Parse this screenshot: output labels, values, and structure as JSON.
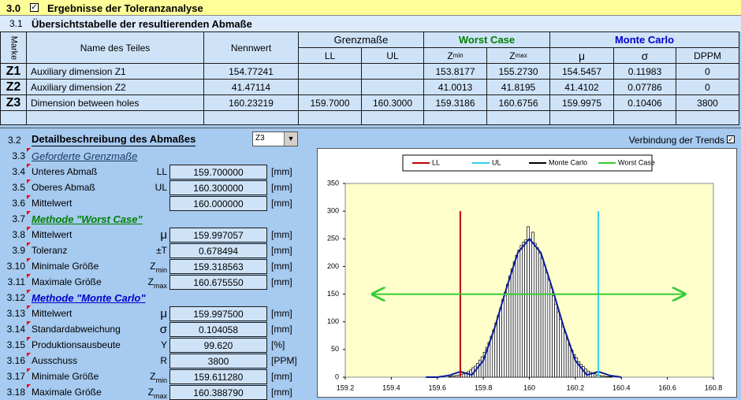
{
  "header": {
    "number": "3.0",
    "title": "Ergebnisse der Toleranzanalyse"
  },
  "overview": {
    "number": "3.1",
    "title": "Übersichtstabelle der resultierenden Abmaße",
    "columns": {
      "mark": "Marke",
      "name": "Name des Teiles",
      "nominal": "Nennwert",
      "ll": "LL",
      "ul": "UL",
      "zmin": {
        "symbol": "Z",
        "sub": "min"
      },
      "zmax": {
        "symbol": "Z",
        "sub": "max"
      },
      "mu": "μ",
      "sigma": "σ",
      "dppm": "DPPM"
    },
    "groups": {
      "limits": "Grenzmaße",
      "worst_case": "Worst Case",
      "monte_carlo": "Monte Carlo"
    },
    "rows": [
      {
        "mark": "Z1",
        "name": "Auxiliary dimension Z1",
        "nominal": "154.77241",
        "zmin": "153.8177",
        "zmax": "155.2730",
        "mu": "154.5457",
        "sigma": "0.11983",
        "dppm": "0"
      },
      {
        "mark": "Z2",
        "name": "Auxiliary dimension Z2",
        "nominal": "41.47114",
        "zmin": "41.0013",
        "zmax": "41.8195",
        "mu": "41.4102",
        "sigma": "0.07786",
        "dppm": "0"
      },
      {
        "mark": "Z3",
        "name": "Dimension between holes",
        "nominal": "160.23219",
        "ll": "159.7000",
        "ul": "160.3000",
        "zmin": "159.3186",
        "zmax": "160.6756",
        "mu": "159.9975",
        "sigma": "0.10406",
        "dppm": "3800"
      }
    ]
  },
  "details": {
    "number": "3.2",
    "title": "Detailbeschreibung des Abmaßes",
    "selected": "Z3",
    "trend_link": "Verbindung der Trends",
    "lines": [
      {
        "number": "3.3",
        "heading": "Geforderte Grenzmaße"
      },
      {
        "number": "3.4",
        "label": "Unteres Abmaß",
        "symbol": "LL",
        "value": "159.700000",
        "unit": "[mm]"
      },
      {
        "number": "3.5",
        "label": "Oberes Abmaß",
        "symbol": "UL",
        "value": "160.300000",
        "unit": "[mm]"
      },
      {
        "number": "3.6",
        "label": "Mittelwert",
        "value": "160.000000",
        "unit": "[mm]"
      },
      {
        "number": "3.7",
        "heading": "Methode \"Worst Case\"",
        "color": "#008000"
      },
      {
        "number": "3.8",
        "label": "Mittelwert",
        "symbol": "μ",
        "value": "159.997057",
        "unit": "[mm]"
      },
      {
        "number": "3.9",
        "label": "Toleranz",
        "symbol": "±T",
        "value": "0.678494",
        "unit": "[mm]"
      },
      {
        "number": "3.10",
        "label": "Minimale Größe",
        "symbol": "Z",
        "symbol_sub": "min",
        "value": "159.318563",
        "unit": "[mm]"
      },
      {
        "number": "3.11",
        "label": "Maximale Größe",
        "symbol": "Z",
        "symbol_sub": "max",
        "value": "160.675550",
        "unit": "[mm]"
      },
      {
        "number": "3.12",
        "heading": "Methode \"Monte Carlo\"",
        "color": "#0000cc"
      },
      {
        "number": "3.13",
        "label": "Mittelwert",
        "symbol": "μ",
        "value": "159.997500",
        "unit": "[mm]"
      },
      {
        "number": "3.14",
        "label": "Standardabweichung",
        "symbol": "σ",
        "value": "0.104058",
        "unit": "[mm]"
      },
      {
        "number": "3.15",
        "label": "Produktionsausbeute",
        "symbol": "Y",
        "value": "99.620",
        "unit": "[%]"
      },
      {
        "number": "3.16",
        "label": "Ausschuss",
        "symbol": "R",
        "value": "3800",
        "unit": "[PPM]"
      },
      {
        "number": "3.17",
        "label": "Minimale Größe",
        "symbol": "Z",
        "symbol_sub": "min",
        "value": "159.611280",
        "unit": "[mm]"
      },
      {
        "number": "3.18",
        "label": "Maximale Größe",
        "symbol": "Z",
        "symbol_sub": "max",
        "value": "160.388790",
        "unit": "[mm]"
      }
    ]
  },
  "chart_data": {
    "type": "histogram",
    "xlim": [
      159.2,
      160.8
    ],
    "xticks": [
      159.2,
      159.4,
      159.6,
      159.8,
      160,
      160.2,
      160.4,
      160.6,
      160.8
    ],
    "ylim": [
      0,
      350
    ],
    "yticks": [
      0,
      50,
      100,
      150,
      200,
      250,
      300,
      350
    ],
    "grid": false,
    "background": "#ffffcc",
    "series": [
      {
        "name": "LL",
        "color": "#c00000",
        "x": [
          159.7,
          159.7
        ],
        "values": [
          0,
          300
        ]
      },
      {
        "name": "UL",
        "color": "#33ccee",
        "x": [
          160.3,
          160.3
        ],
        "values": [
          0,
          300
        ]
      },
      {
        "name": "Monte Carlo",
        "kind": "histogram",
        "color": "#000000",
        "bins": [
          159.65,
          159.66,
          159.67,
          159.68,
          159.69,
          159.7,
          159.71,
          159.72,
          159.73,
          159.74,
          159.75,
          159.76,
          159.77,
          159.78,
          159.79,
          159.8,
          159.81,
          159.82,
          159.83,
          159.84,
          159.85,
          159.86,
          159.87,
          159.88,
          159.89,
          159.9,
          159.91,
          159.92,
          159.93,
          159.94,
          159.95,
          159.96,
          159.97,
          159.98,
          159.99,
          160,
          160.01,
          160.02,
          160.03,
          160.04,
          160.05,
          160.06,
          160.07,
          160.08,
          160.09,
          160.1,
          160.11,
          160.12,
          160.13,
          160.14,
          160.15,
          160.16,
          160.17,
          160.18,
          160.19,
          160.2,
          160.21,
          160.22,
          160.23,
          160.24,
          160.25,
          160.26,
          160.27,
          160.28,
          160.29,
          160.3,
          160.31,
          160.32,
          160.33,
          160.34,
          160.35,
          160.36,
          160.37,
          160.38
        ],
        "values": [
          1,
          2,
          2,
          3,
          4,
          5,
          6,
          8,
          10,
          13,
          17,
          20,
          25,
          31,
          37,
          45,
          54,
          63,
          74,
          85,
          98,
          111,
          124,
          140,
          153,
          168,
          183,
          196,
          209,
          220,
          230,
          238,
          244,
          248,
          272,
          249,
          262,
          242,
          234,
          224,
          215,
          202,
          189,
          176,
          161,
          147,
          132,
          118,
          105,
          91,
          80,
          68,
          58,
          49,
          41,
          35,
          28,
          23,
          19,
          15,
          11,
          9,
          7,
          6,
          4,
          3,
          2,
          2,
          1,
          1,
          1,
          0,
          0
        ]
      },
      {
        "name": "Worst Case",
        "color": "#33cc33",
        "x": [
          159.318563,
          160.67555
        ],
        "values": [
          150,
          150
        ],
        "arrows": true
      }
    ],
    "fit": {
      "color": "#0a1a9a",
      "x": [
        159.55,
        159.6,
        159.65,
        159.7,
        159.75,
        159.8,
        159.85,
        159.9,
        159.95,
        160,
        160.05,
        160.1,
        160.15,
        160.2,
        160.25,
        160.3,
        160.35,
        160.4
      ],
      "values": [
        0,
        0,
        3,
        10,
        4,
        30,
        90,
        160,
        225,
        250,
        225,
        160,
        90,
        30,
        4,
        10,
        3,
        0
      ]
    }
  }
}
